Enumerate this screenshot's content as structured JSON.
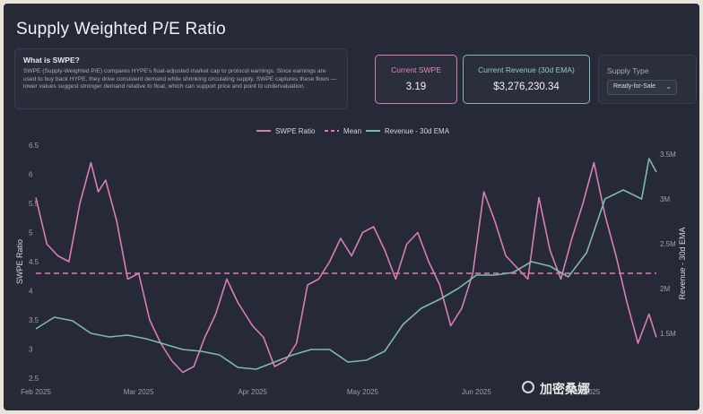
{
  "page": {
    "title": "Supply Weighted P/E Ratio"
  },
  "info": {
    "heading": "What is SWPE?",
    "body": "SWPE (Supply-Weighted P/E) compares HYPE's float-adjusted market cap to protocol earnings. Since earnings are used to buy back HYPE, they drive consistent demand while shrinking circulating supply. SWPE captures these flows — lower values suggest stronger demand relative to float, which can support price and point to undervaluation."
  },
  "cards": {
    "swpe": {
      "label": "Current SWPE",
      "value": "3.19"
    },
    "revenue": {
      "label": "Current Revenue (30d EMA)",
      "value": "$3,276,230.34"
    }
  },
  "supply_type": {
    "label": "Supply Type",
    "selected": "Ready-for-Sale"
  },
  "watermark": {
    "text": "加密桑娜"
  },
  "colors": {
    "swpe": "#d97fae",
    "mean": "#d97fae",
    "revenue": "#7fb9ac",
    "background": "#262a36"
  },
  "icons": {
    "select_chevron": "chevron-down-icon"
  },
  "chart_data": {
    "type": "line",
    "legend": [
      "SWPE Ratio",
      "Mean",
      "Revenue - 30d EMA"
    ],
    "legend_position": "top-center",
    "y_left": {
      "label": "SWPE Ratio",
      "ticks": [
        "2.5",
        "3",
        "3.5",
        "4",
        "4.5",
        "5",
        "5.5",
        "6",
        "6.5"
      ],
      "range": [
        2.5,
        6.5
      ]
    },
    "y_right": {
      "label": "Revenue - 30d EMA",
      "ticks": [
        "1.5M",
        "2M",
        "2.5M",
        "3M",
        "3.5M"
      ],
      "range": [
        1000000,
        3600000
      ]
    },
    "x_ticks": [
      "Feb 2025",
      "Mar 2025",
      "Apr 2025",
      "May 2025",
      "Jun 2025",
      "Jul 2025"
    ],
    "x_range": [
      "2025-02-01",
      "2025-07-20"
    ],
    "mean": 4.3,
    "series": [
      {
        "name": "SWPE Ratio",
        "axis": "left",
        "x": [
          "2025-02-01",
          "2025-02-04",
          "2025-02-07",
          "2025-02-10",
          "2025-02-13",
          "2025-02-16",
          "2025-02-18",
          "2025-02-20",
          "2025-02-23",
          "2025-02-26",
          "2025-03-01",
          "2025-03-04",
          "2025-03-07",
          "2025-03-10",
          "2025-03-13",
          "2025-03-16",
          "2025-03-19",
          "2025-03-22",
          "2025-03-25",
          "2025-03-28",
          "2025-04-01",
          "2025-04-04",
          "2025-04-07",
          "2025-04-10",
          "2025-04-13",
          "2025-04-16",
          "2025-04-19",
          "2025-04-22",
          "2025-04-25",
          "2025-04-28",
          "2025-05-01",
          "2025-05-04",
          "2025-05-07",
          "2025-05-10",
          "2025-05-13",
          "2025-05-16",
          "2025-05-19",
          "2025-05-22",
          "2025-05-25",
          "2025-05-28",
          "2025-05-31",
          "2025-06-03",
          "2025-06-06",
          "2025-06-09",
          "2025-06-12",
          "2025-06-15",
          "2025-06-18",
          "2025-06-21",
          "2025-06-24",
          "2025-06-27",
          "2025-06-30",
          "2025-07-03",
          "2025-07-06",
          "2025-07-09",
          "2025-07-12",
          "2025-07-15",
          "2025-07-18",
          "2025-07-20"
        ],
        "values": [
          5.6,
          4.8,
          4.6,
          4.5,
          5.5,
          6.2,
          5.7,
          5.9,
          5.2,
          4.2,
          4.3,
          3.5,
          3.1,
          2.8,
          2.6,
          2.7,
          3.2,
          3.6,
          4.2,
          3.8,
          3.4,
          3.2,
          2.7,
          2.8,
          3.1,
          4.1,
          4.2,
          4.5,
          4.9,
          4.6,
          5.0,
          5.1,
          4.7,
          4.2,
          4.8,
          5.0,
          4.5,
          4.1,
          3.4,
          3.7,
          4.3,
          5.7,
          5.2,
          4.6,
          4.4,
          4.2,
          5.6,
          4.7,
          4.2,
          4.9,
          5.5,
          6.2,
          5.3,
          4.6,
          3.8,
          3.1,
          3.6,
          3.2
        ]
      },
      {
        "name": "Revenue - 30d EMA",
        "axis": "right",
        "x": [
          "2025-02-01",
          "2025-02-06",
          "2025-02-11",
          "2025-02-16",
          "2025-02-21",
          "2025-02-26",
          "2025-03-03",
          "2025-03-08",
          "2025-03-13",
          "2025-03-18",
          "2025-03-23",
          "2025-03-28",
          "2025-04-02",
          "2025-04-07",
          "2025-04-12",
          "2025-04-17",
          "2025-04-22",
          "2025-04-27",
          "2025-05-02",
          "2025-05-07",
          "2025-05-12",
          "2025-05-17",
          "2025-05-22",
          "2025-05-27",
          "2025-06-01",
          "2025-06-06",
          "2025-06-11",
          "2025-06-16",
          "2025-06-21",
          "2025-06-26",
          "2025-07-01",
          "2025-07-06",
          "2025-07-11",
          "2025-07-16",
          "2025-07-18",
          "2025-07-20"
        ],
        "values": [
          1550000,
          1680000,
          1640000,
          1500000,
          1460000,
          1480000,
          1440000,
          1380000,
          1320000,
          1300000,
          1260000,
          1120000,
          1100000,
          1180000,
          1260000,
          1320000,
          1320000,
          1180000,
          1200000,
          1300000,
          1600000,
          1780000,
          1880000,
          2000000,
          2150000,
          2150000,
          2180000,
          2300000,
          2250000,
          2130000,
          2400000,
          3000000,
          3100000,
          3000000,
          3450000,
          3300000
        ]
      }
    ]
  }
}
